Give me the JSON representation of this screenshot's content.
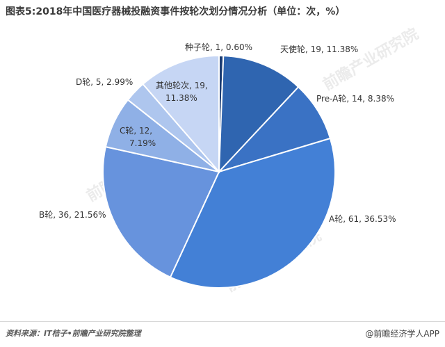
{
  "header": {
    "title": "图表5:2018年中国医疗器械投融资事件按轮次划分情况分析（单位：次，%）"
  },
  "footer": {
    "source": "资料来源：IT桔子•前瞻产业研究院整理",
    "credit": "@前瞻经济学人APP"
  },
  "watermark": {
    "text": "前瞻产业研究院"
  },
  "chart_data": {
    "type": "pie",
    "title": "图表5:2018年中国医疗器械投融资事件按轮次划分情况分析（单位：次，%）",
    "slices": [
      {
        "name": "种子轮",
        "value": 1,
        "percent": 0.6,
        "color": "#1c3d73",
        "label_lines": [
          "种子轮, 1, 0.60%"
        ]
      },
      {
        "name": "天使轮",
        "value": 19,
        "percent": 11.38,
        "color": "#2f65b0",
        "label_lines": [
          "天使轮, 19, 11.38%"
        ]
      },
      {
        "name": "Pre-A轮",
        "value": 14,
        "percent": 8.38,
        "color": "#3a72c4",
        "label_lines": [
          "Pre-A轮, 14, 8.38%"
        ]
      },
      {
        "name": "A轮",
        "value": 61,
        "percent": 36.53,
        "color": "#4380d6",
        "label_lines": [
          "A轮, 61, 36.53%"
        ]
      },
      {
        "name": "B轮",
        "value": 36,
        "percent": 21.56,
        "color": "#6793dd",
        "label_lines": [
          "B轮, 36, 21.56%"
        ]
      },
      {
        "name": "C轮",
        "value": 12,
        "percent": 7.19,
        "color": "#8fb0e6",
        "label_lines": [
          "C轮, 12,",
          "7.19%"
        ]
      },
      {
        "name": "D轮",
        "value": 5,
        "percent": 2.99,
        "color": "#aec6ee",
        "label_lines": [
          "D轮, 5, 2.99%"
        ]
      },
      {
        "name": "其他轮次",
        "value": 19,
        "percent": 11.38,
        "color": "#c6d6f4",
        "label_lines": [
          "其他轮次, 19,",
          "11.38%"
        ]
      }
    ]
  }
}
